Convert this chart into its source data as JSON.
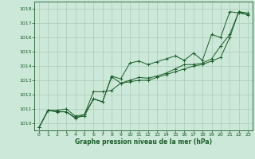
{
  "background_color": "#cce8d8",
  "grid_color": "#aacaba",
  "line_color": "#1a5c2a",
  "marker_color": "#1a5c2a",
  "xlabel": "Graphe pression niveau de la mer (hPa)",
  "xlabel_color": "#1a5c2a",
  "xlim": [
    -0.5,
    23.5
  ],
  "ylim": [
    1009.5,
    1018.5
  ],
  "yticks": [
    1010,
    1011,
    1012,
    1013,
    1014,
    1015,
    1016,
    1017,
    1018
  ],
  "xticks": [
    0,
    1,
    2,
    3,
    4,
    5,
    6,
    7,
    8,
    9,
    10,
    11,
    12,
    13,
    14,
    15,
    16,
    17,
    18,
    19,
    20,
    21,
    22,
    23
  ],
  "series1_x": [
    0,
    1,
    2,
    3,
    4,
    5,
    6,
    7,
    8,
    9,
    10,
    11,
    12,
    13,
    14,
    15,
    16,
    17,
    18,
    19,
    20,
    21,
    22,
    23
  ],
  "series1_y": [
    1009.7,
    1010.9,
    1010.8,
    1010.8,
    1010.4,
    1010.5,
    1011.7,
    1011.5,
    1013.3,
    1013.1,
    1014.2,
    1014.35,
    1014.1,
    1014.3,
    1014.5,
    1014.7,
    1014.4,
    1014.9,
    1014.4,
    1016.2,
    1016.0,
    1017.8,
    1017.7,
    1017.6
  ],
  "series2_x": [
    0,
    1,
    2,
    3,
    4,
    5,
    6,
    7,
    8,
    9,
    10,
    11,
    12,
    13,
    14,
    15,
    16,
    17,
    18,
    19,
    20,
    21,
    22,
    23
  ],
  "series2_y": [
    1009.7,
    1010.9,
    1010.9,
    1011.0,
    1010.5,
    1010.6,
    1012.2,
    1012.2,
    1012.3,
    1012.8,
    1013.0,
    1013.2,
    1013.15,
    1013.3,
    1013.5,
    1013.8,
    1014.1,
    1014.1,
    1014.2,
    1014.5,
    1015.4,
    1016.2,
    1017.8,
    1017.7
  ],
  "series3_x": [
    0,
    1,
    2,
    3,
    4,
    5,
    6,
    7,
    8,
    9,
    10,
    11,
    12,
    13,
    14,
    15,
    16,
    17,
    18,
    19,
    20,
    21,
    22,
    23
  ],
  "series3_y": [
    1009.7,
    1010.9,
    1010.8,
    1010.8,
    1010.35,
    1010.6,
    1011.7,
    1011.5,
    1013.25,
    1012.8,
    1012.9,
    1013.0,
    1013.0,
    1013.2,
    1013.4,
    1013.6,
    1013.8,
    1014.0,
    1014.1,
    1014.35,
    1014.6,
    1016.0,
    1017.8,
    1017.55
  ]
}
